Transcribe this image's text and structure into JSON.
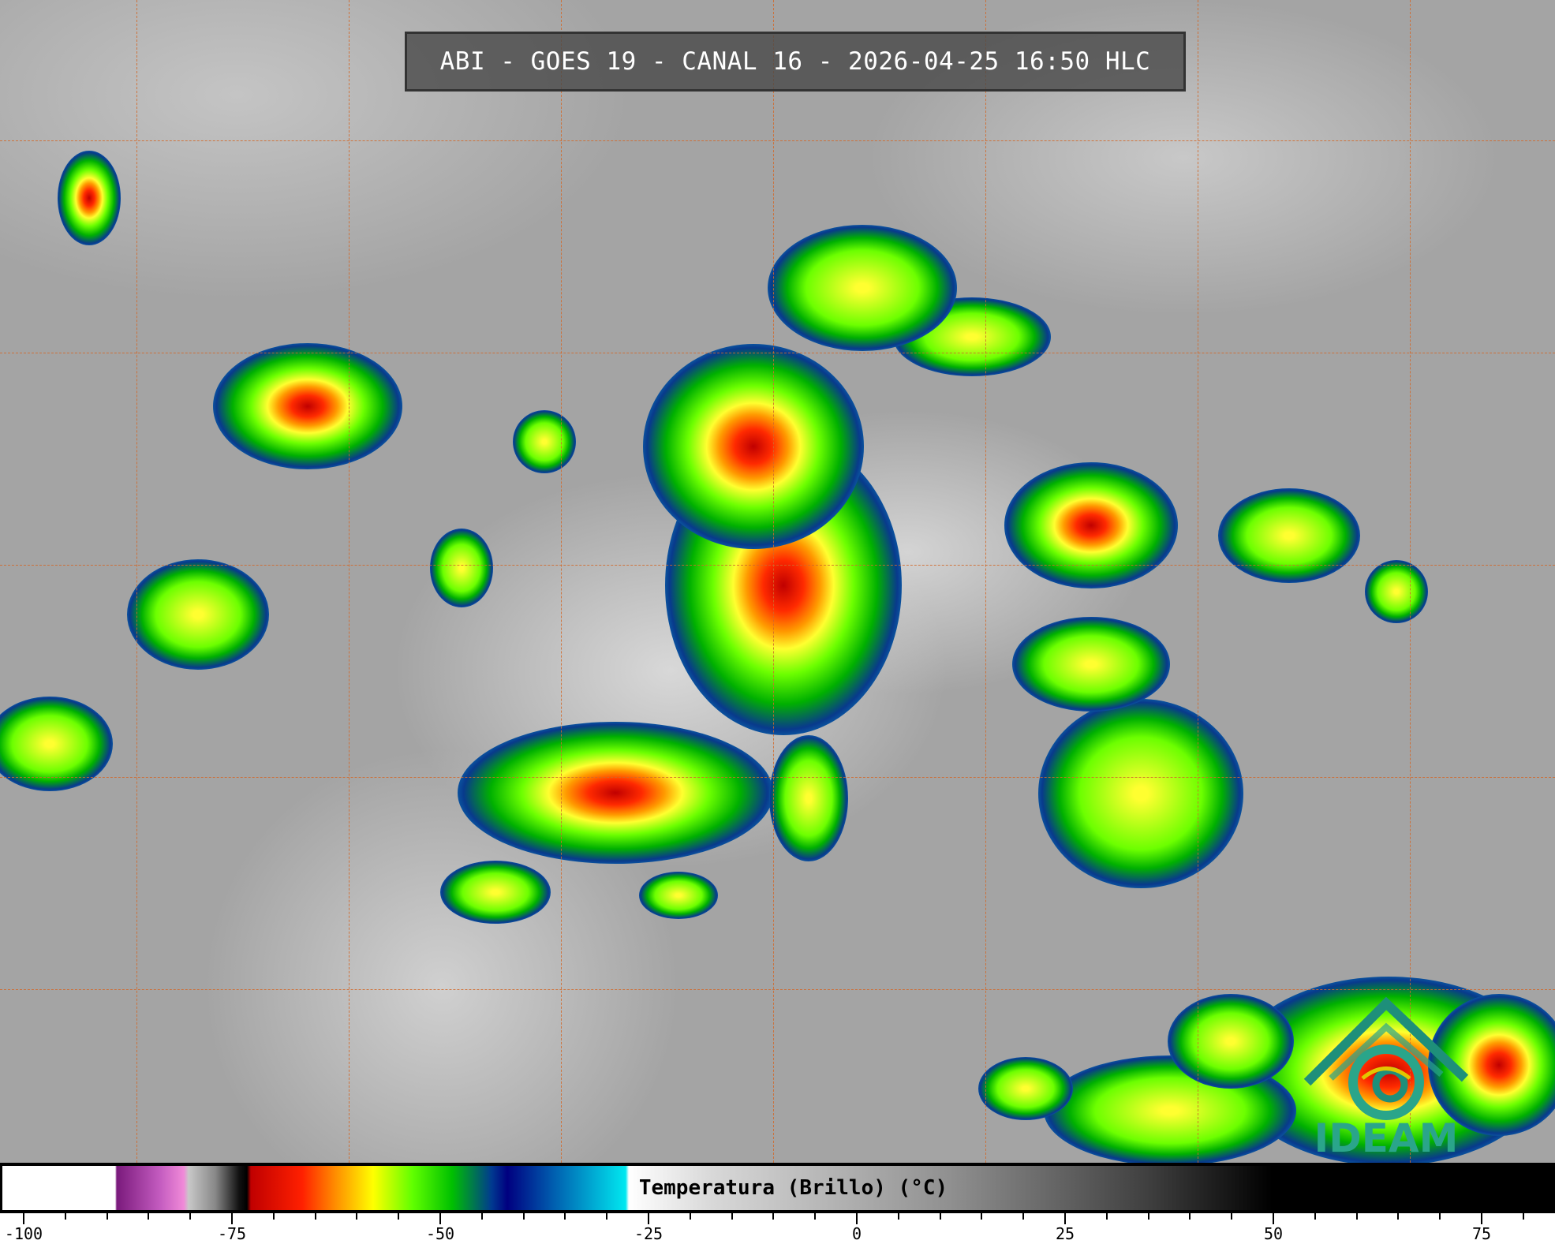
{
  "title": "ABI - GOES 19 - CANAL 16 - 2026-04-25 16:50 HLC",
  "logo": {
    "text": "IDEAM",
    "color": "#2aa58a"
  },
  "colorbar": {
    "label": "Temperatura (Brillo) (°C)",
    "min": -100,
    "max": 85,
    "tick_labels": [
      "-100",
      "-75",
      "-50",
      "-25",
      "0",
      "25",
      "50",
      "75"
    ],
    "minor_tick_step": 5
  },
  "grid": {
    "line_color": "#d2692a",
    "style": "dashed"
  }
}
